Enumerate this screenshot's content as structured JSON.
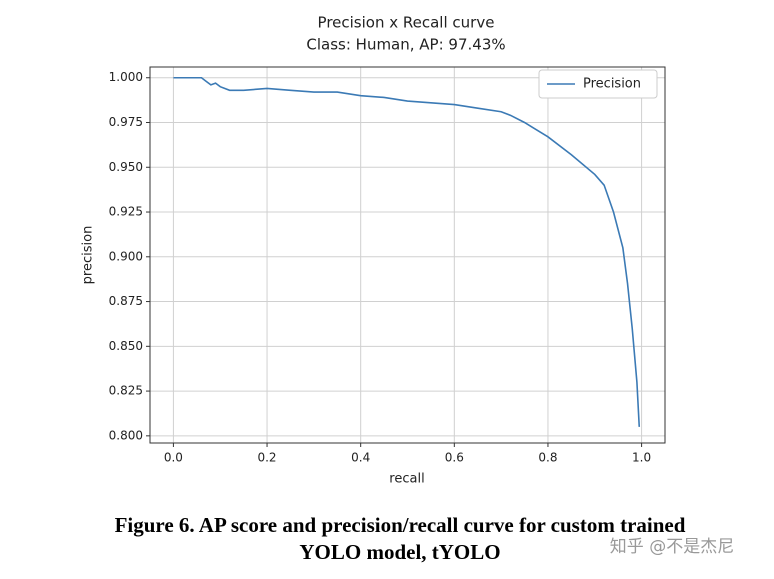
{
  "chart_data": {
    "type": "line",
    "title": "Precision x Recall curve",
    "subtitle": "Class: Human, AP: 97.43%",
    "xlabel": "recall",
    "ylabel": "precision",
    "xlim": [
      -0.05,
      1.05
    ],
    "ylim": [
      0.796,
      1.006
    ],
    "xticks": [
      {
        "value": 0,
        "label": "0.0"
      },
      {
        "value": 0.2,
        "label": "0.2"
      },
      {
        "value": 0.4,
        "label": "0.4"
      },
      {
        "value": 0.6,
        "label": "0.6"
      },
      {
        "value": 0.8,
        "label": "0.8"
      },
      {
        "value": 1,
        "label": "1.0"
      }
    ],
    "yticks": [
      {
        "value": 0.8,
        "label": "0.800"
      },
      {
        "value": 0.825,
        "label": "0.825"
      },
      {
        "value": 0.85,
        "label": "0.850"
      },
      {
        "value": 0.875,
        "label": "0.875"
      },
      {
        "value": 0.9,
        "label": "0.900"
      },
      {
        "value": 0.925,
        "label": "0.925"
      },
      {
        "value": 0.95,
        "label": "0.950"
      },
      {
        "value": 0.975,
        "label": "0.975"
      },
      {
        "value": 1,
        "label": "1.000"
      }
    ],
    "grid": true,
    "legend": "upper right",
    "series": [
      {
        "name": "Precision",
        "color": "#3b7ab5",
        "x": [
          0,
          0.06,
          0.07,
          0.08,
          0.09,
          0.1,
          0.12,
          0.15,
          0.2,
          0.25,
          0.3,
          0.35,
          0.4,
          0.45,
          0.5,
          0.55,
          0.6,
          0.65,
          0.7,
          0.72,
          0.75,
          0.8,
          0.85,
          0.9,
          0.92,
          0.94,
          0.96,
          0.97,
          0.98,
          0.99,
          0.995
        ],
        "values": [
          1.0,
          1.0,
          0.998,
          0.996,
          0.997,
          0.995,
          0.993,
          0.993,
          0.994,
          0.993,
          0.992,
          0.992,
          0.99,
          0.989,
          0.987,
          0.986,
          0.985,
          0.983,
          0.981,
          0.979,
          0.975,
          0.967,
          0.957,
          0.946,
          0.94,
          0.925,
          0.905,
          0.885,
          0.86,
          0.83,
          0.805
        ]
      }
    ]
  },
  "caption": [
    "Figure 6. AP score and precision/recall curve for custom trained",
    "YOLO model, tYOLO"
  ],
  "watermark": "知乎 @不是杰尼"
}
